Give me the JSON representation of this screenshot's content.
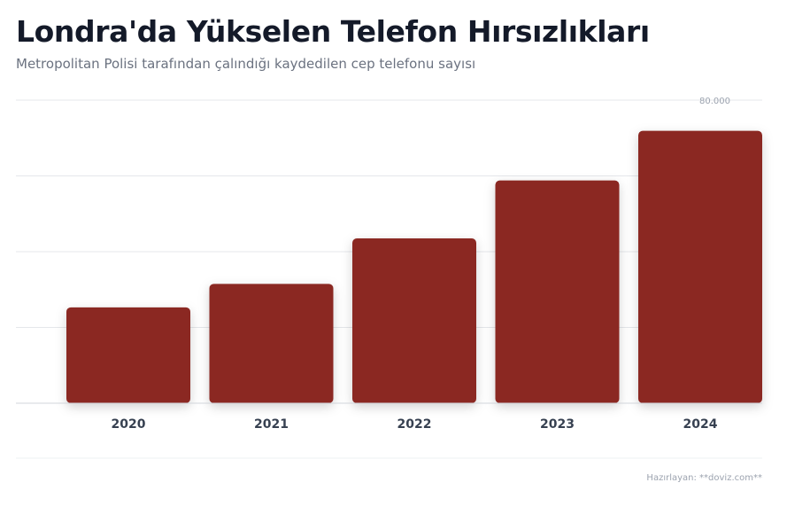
{
  "chart_data": {
    "type": "bar",
    "title": "Londra'da Yükselen Telefon Hırsızlıkları",
    "subtitle": "Metropolitan Polisi tarafından çalındığı kaydedilen cep telefonu sayısı",
    "categories": [
      "2020",
      "2021",
      "2022",
      "2023",
      "2024"
    ],
    "values": [
      25300,
      31500,
      43500,
      58800,
      71900
    ],
    "ylim": [
      0,
      80000
    ],
    "y_tick_label": "80.000",
    "xlabel": "",
    "ylabel": "",
    "grid": true,
    "bar_color": "#8b2822"
  },
  "footer": {
    "credit": "Hazırlayan: **doviz.com**"
  }
}
